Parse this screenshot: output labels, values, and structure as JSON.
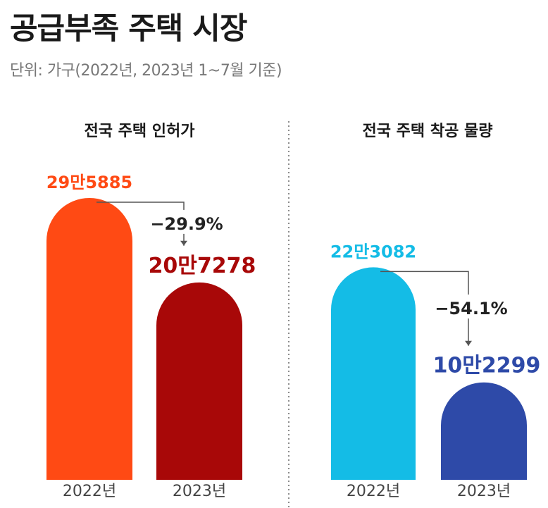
{
  "title": "공급부족 주택 시장",
  "unit": "단위: 가구(2022년, 2023년 1~7월 기준)",
  "chart_data": [
    {
      "type": "bar",
      "title": "전국 주택 인허가",
      "categories": [
        "2022년",
        "2023년"
      ],
      "values": [
        295885,
        207278
      ],
      "data_labels": [
        "29만5885",
        "20만7278"
      ],
      "change_label": "−29.9%",
      "colors": [
        "#ff4a14",
        "#a80808"
      ],
      "label_colors": [
        "#ff4a14",
        "#a80808"
      ],
      "ylim": [
        0,
        300000
      ]
    },
    {
      "type": "bar",
      "title": "전국 주택 착공 물량",
      "categories": [
        "2022년",
        "2023년"
      ],
      "values": [
        223082,
        102299
      ],
      "data_labels": [
        "22만3082",
        "10만2299"
      ],
      "change_label": "−54.1%",
      "colors": [
        "#14bce6",
        "#2e4aa8"
      ],
      "label_colors": [
        "#14bce6",
        "#2e4aa8"
      ],
      "ylim": [
        0,
        300000
      ]
    }
  ]
}
